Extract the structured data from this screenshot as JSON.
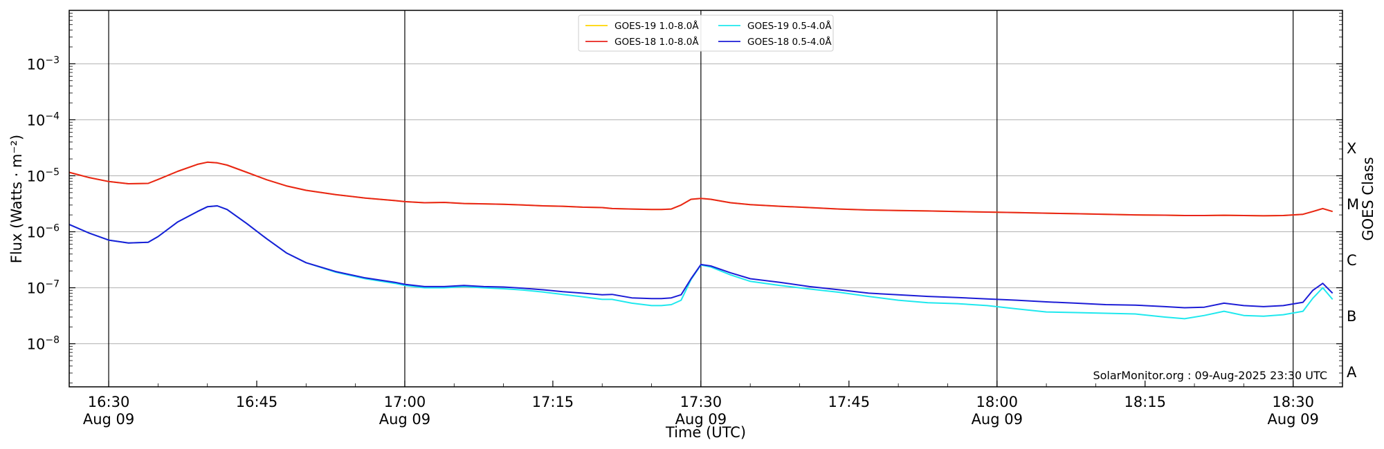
{
  "chart_data": {
    "type": "line",
    "xlabel": "Time (UTC)",
    "ylabel": "Flux (Watts · m⁻²)",
    "y2label": "GOES Class",
    "yscale": "log",
    "xlim": [
      "16:26",
      "18:35"
    ],
    "ylim": [
      1.7e-09,
      0.009
    ],
    "grid": "horizontal at decades; vertical lines every 30 min",
    "legend_position": "top-center",
    "credit": "SolarMonitor.org : 09-Aug-2025 23:30 UTC",
    "x_ticks": [
      {
        "time": "16:30",
        "line1": "16:30",
        "line2": "Aug 09"
      },
      {
        "time": "16:45",
        "line1": "16:45",
        "line2": ""
      },
      {
        "time": "17:00",
        "line1": "17:00",
        "line2": "Aug 09"
      },
      {
        "time": "17:15",
        "line1": "17:15",
        "line2": ""
      },
      {
        "time": "17:30",
        "line1": "17:30",
        "line2": "Aug 09"
      },
      {
        "time": "17:45",
        "line1": "17:45",
        "line2": ""
      },
      {
        "time": "18:00",
        "line1": "18:00",
        "line2": "Aug 09"
      },
      {
        "time": "18:15",
        "line1": "18:15",
        "line2": ""
      },
      {
        "time": "18:30",
        "line1": "18:30",
        "line2": "Aug 09"
      }
    ],
    "vertical_lines": [
      "16:30",
      "17:00",
      "17:30",
      "18:00",
      "18:30"
    ],
    "y_ticks": [
      {
        "exp": -8,
        "label": "10",
        "sup": "−8"
      },
      {
        "exp": -7,
        "label": "10",
        "sup": "−7"
      },
      {
        "exp": -6,
        "label": "10",
        "sup": "−6"
      },
      {
        "exp": -5,
        "label": "10",
        "sup": "−5"
      },
      {
        "exp": -4,
        "label": "10",
        "sup": "−4"
      },
      {
        "exp": -3,
        "label": "10",
        "sup": "−3"
      }
    ],
    "goes_classes": [
      {
        "label": "A",
        "exp": -8.5
      },
      {
        "label": "B",
        "exp": -7.5
      },
      {
        "label": "C",
        "exp": -6.5
      },
      {
        "label": "M",
        "exp": -5.5
      },
      {
        "label": "X",
        "exp": -4.5
      }
    ],
    "x": [
      "16:26",
      "16:28",
      "16:30",
      "16:32",
      "16:34",
      "16:35",
      "16:37",
      "16:39",
      "16:40",
      "16:41",
      "16:42",
      "16:44",
      "16:46",
      "16:48",
      "16:50",
      "16:53",
      "16:56",
      "16:59",
      "17:00",
      "17:02",
      "17:04",
      "17:06",
      "17:08",
      "17:10",
      "17:12",
      "17:14",
      "17:16",
      "17:18",
      "17:20",
      "17:21",
      "17:23",
      "17:25",
      "17:26",
      "17:27",
      "17:28",
      "17:29",
      "17:30",
      "17:31",
      "17:33",
      "17:35",
      "17:38",
      "17:41",
      "17:44",
      "17:47",
      "17:50",
      "17:53",
      "17:56",
      "17:59",
      "18:02",
      "18:05",
      "18:08",
      "18:11",
      "18:14",
      "18:17",
      "18:19",
      "18:21",
      "18:23",
      "18:25",
      "18:27",
      "18:29",
      "18:31",
      "18:32",
      "18:33",
      "18:34"
    ],
    "series": [
      {
        "name": "GOES-19 1.0-8.0Å",
        "color": "#ffd500",
        "values": [
          1.15e-05,
          9.3e-06,
          7.9e-06,
          7.2e-06,
          7.3e-06,
          8.6e-06,
          1.2e-05,
          1.6e-05,
          1.75e-05,
          1.7e-05,
          1.55e-05,
          1.15e-05,
          8.5e-06,
          6.6e-06,
          5.5e-06,
          4.6e-06,
          4e-06,
          3.6e-06,
          3.45e-06,
          3.3e-06,
          3.35e-06,
          3.2e-06,
          3.15e-06,
          3.1e-06,
          3e-06,
          2.9e-06,
          2.85e-06,
          2.75e-06,
          2.7e-06,
          2.6e-06,
          2.55e-06,
          2.5e-06,
          2.5e-06,
          2.55e-06,
          3e-06,
          3.8e-06,
          3.95e-06,
          3.8e-06,
          3.3e-06,
          3.05e-06,
          2.85e-06,
          2.7e-06,
          2.55e-06,
          2.45e-06,
          2.4e-06,
          2.35e-06,
          2.3e-06,
          2.25e-06,
          2.2e-06,
          2.15e-06,
          2.1e-06,
          2.05e-06,
          2e-06,
          1.98e-06,
          1.95e-06,
          1.95e-06,
          1.97e-06,
          1.95e-06,
          1.93e-06,
          1.95e-06,
          2.05e-06,
          2.3e-06,
          2.6e-06,
          2.3e-06
        ]
      },
      {
        "name": "GOES-18 1.0-8.0Å",
        "color": "#e8231b",
        "values": [
          1.15e-05,
          9.3e-06,
          7.9e-06,
          7.2e-06,
          7.3e-06,
          8.6e-06,
          1.2e-05,
          1.6e-05,
          1.75e-05,
          1.7e-05,
          1.55e-05,
          1.15e-05,
          8.5e-06,
          6.6e-06,
          5.5e-06,
          4.6e-06,
          4e-06,
          3.6e-06,
          3.45e-06,
          3.3e-06,
          3.35e-06,
          3.2e-06,
          3.15e-06,
          3.1e-06,
          3e-06,
          2.9e-06,
          2.85e-06,
          2.75e-06,
          2.7e-06,
          2.6e-06,
          2.55e-06,
          2.5e-06,
          2.5e-06,
          2.55e-06,
          3e-06,
          3.8e-06,
          3.95e-06,
          3.8e-06,
          3.3e-06,
          3.05e-06,
          2.85e-06,
          2.7e-06,
          2.55e-06,
          2.45e-06,
          2.4e-06,
          2.35e-06,
          2.3e-06,
          2.25e-06,
          2.2e-06,
          2.15e-06,
          2.1e-06,
          2.05e-06,
          2e-06,
          1.98e-06,
          1.95e-06,
          1.95e-06,
          1.97e-06,
          1.95e-06,
          1.93e-06,
          1.95e-06,
          2.05e-06,
          2.3e-06,
          2.6e-06,
          2.3e-06
        ]
      },
      {
        "name": "GOES-19 0.5-4.0Å",
        "color": "#1ee8ee",
        "values": [
          1.35e-06,
          9.5e-07,
          7.1e-07,
          6.3e-07,
          6.5e-07,
          8.2e-07,
          1.5e-06,
          2.3e-06,
          2.8e-06,
          2.9e-06,
          2.5e-06,
          1.4e-06,
          7.5e-07,
          4.2e-07,
          2.8e-07,
          1.9e-07,
          1.45e-07,
          1.2e-07,
          1.1e-07,
          1e-07,
          1e-07,
          1.05e-07,
          1e-07,
          9.6e-08,
          9.1e-08,
          8.4e-08,
          7.6e-08,
          6.9e-08,
          6.2e-08,
          6.2e-08,
          5.3e-08,
          4.8e-08,
          4.8e-08,
          5e-08,
          6e-08,
          1.4e-07,
          2.55e-07,
          2.35e-07,
          1.7e-07,
          1.3e-07,
          1.1e-07,
          9.5e-08,
          8.3e-08,
          7e-08,
          6e-08,
          5.4e-08,
          5.2e-08,
          4.8e-08,
          4.2e-08,
          3.7e-08,
          3.6e-08,
          3.5e-08,
          3.4e-08,
          3e-08,
          2.8e-08,
          3.2e-08,
          3.8e-08,
          3.2e-08,
          3.1e-08,
          3.3e-08,
          3.8e-08,
          6.5e-08,
          1e-07,
          6.2e-08
        ]
      },
      {
        "name": "GOES-18 0.5-4.0Å",
        "color": "#1c1cd6",
        "values": [
          1.35e-06,
          9.5e-07,
          7.1e-07,
          6.3e-07,
          6.5e-07,
          8.2e-07,
          1.5e-06,
          2.3e-06,
          2.8e-06,
          2.9e-06,
          2.5e-06,
          1.4e-06,
          7.5e-07,
          4.2e-07,
          2.8e-07,
          1.95e-07,
          1.5e-07,
          1.25e-07,
          1.15e-07,
          1.05e-07,
          1.05e-07,
          1.1e-07,
          1.05e-07,
          1.03e-07,
          9.8e-08,
          9.2e-08,
          8.5e-08,
          8e-08,
          7.5e-08,
          7.6e-08,
          6.6e-08,
          6.4e-08,
          6.4e-08,
          6.6e-08,
          7.5e-08,
          1.45e-07,
          2.6e-07,
          2.45e-07,
          1.85e-07,
          1.45e-07,
          1.25e-07,
          1.05e-07,
          9.2e-08,
          8e-08,
          7.5e-08,
          7e-08,
          6.7e-08,
          6.3e-08,
          6e-08,
          5.6e-08,
          5.3e-08,
          5e-08,
          4.9e-08,
          4.6e-08,
          4.4e-08,
          4.5e-08,
          5.3e-08,
          4.8e-08,
          4.6e-08,
          4.8e-08,
          5.5e-08,
          9e-08,
          1.2e-07,
          8e-08
        ]
      }
    ]
  }
}
